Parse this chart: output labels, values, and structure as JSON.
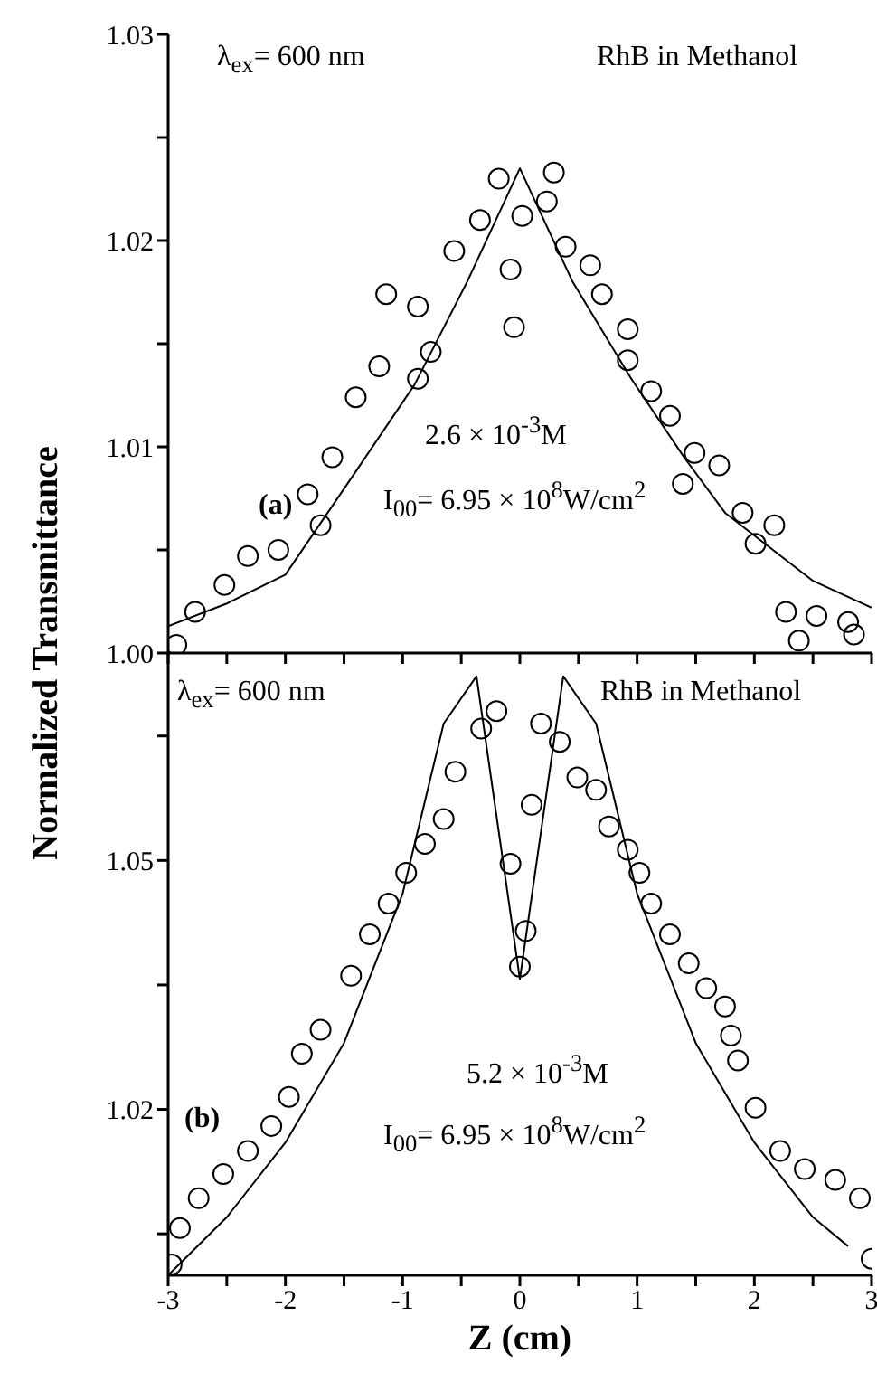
{
  "chart_data": [
    {
      "type": "scatter",
      "marker": "circle",
      "tick_labels": "y",
      "xlim": [
        -3,
        3
      ],
      "xticks": [
        -3,
        {
          "value": -2.5,
          "label": null
        },
        -2,
        {
          "value": -1.5,
          "label": null
        },
        -1,
        {
          "value": -0.5,
          "label": null
        },
        0,
        {
          "value": 0.5,
          "label": null
        },
        1,
        {
          "value": 1.5,
          "label": null
        },
        2,
        {
          "value": 2.5,
          "label": null
        },
        3
      ],
      "ylim": [
        1.0,
        1.03
      ],
      "yticks": [
        {
          "value": 1.0,
          "label": "1.00"
        },
        {
          "value": 1.005,
          "label": null
        },
        1.01,
        {
          "value": 1.015,
          "label": null
        },
        1.02,
        {
          "value": 1.025,
          "label": null
        },
        1.03
      ],
      "annotations": [
        "λ$_{ex}$= 600 nm",
        "RhB in Methanol",
        "2.6 × 10$^{-3}$M",
        "I$_{00}$= 6.95 × 10$^{8}$W/cm$^{2}$",
        "(a)"
      ],
      "series": [
        {
          "color": "#000000",
          "x": [
            -2.93,
            -2.77,
            -2.52,
            -2.32,
            -2.06,
            -1.81,
            -1.7,
            -1.6,
            -1.4,
            -1.2,
            -0.87,
            -0.76,
            -1.14,
            -0.87,
            -0.56,
            -0.34,
            -0.18,
            0.02,
            -0.08,
            -0.05,
            0.29,
            0.23,
            0.39,
            0.6,
            0.7,
            0.92,
            0.92,
            1.12,
            1.28,
            1.49,
            1.39,
            1.7,
            1.9,
            2.17,
            2.01,
            2.27,
            2.53,
            2.8,
            2.38,
            2.85
          ],
          "values": [
            1.0004,
            1.002,
            1.0033,
            1.0047,
            1.005,
            1.0077,
            1.0062,
            1.0095,
            1.0124,
            1.0139,
            1.0133,
            1.0146,
            1.0174,
            1.0168,
            1.0195,
            1.021,
            1.023,
            1.0212,
            1.0186,
            1.0158,
            1.0233,
            1.0219,
            1.0197,
            1.0188,
            1.0174,
            1.0157,
            1.0142,
            1.0127,
            1.0115,
            1.0097,
            1.0082,
            1.0091,
            1.0068,
            1.0062,
            1.0053,
            1.002,
            1.0018,
            1.0015,
            1.0006,
            1.0009
          ]
        },
        {
          "type": "line",
          "marker": "none",
          "line_style": "solid",
          "color": "#000000",
          "x": [
            -3,
            -2.5,
            -2,
            -1.4,
            -0.9,
            -0.45,
            0,
            0.45,
            0.95,
            1.4,
            1.75,
            2.5,
            3
          ],
          "values": [
            1.0013,
            1.0024,
            1.0038,
            1.0088,
            1.013,
            1.018,
            1.0235,
            1.018,
            1.0133,
            1.0095,
            1.0068,
            1.0035,
            1.0022
          ]
        }
      ]
    },
    {
      "type": "scatter",
      "marker": "circle",
      "xlabel": "Z (cm)",
      "ylabel": "Normalized Transmittance",
      "xlim": [
        -3,
        3
      ],
      "xticks": [
        -3,
        {
          "value": -2.5,
          "label": null
        },
        -2,
        {
          "value": -1.5,
          "label": null
        },
        -1,
        {
          "value": -0.5,
          "label": null
        },
        0,
        {
          "value": 0.5,
          "label": null
        },
        1,
        {
          "value": 1.5,
          "label": null
        },
        2,
        {
          "value": 2.5,
          "label": null
        },
        3
      ],
      "ylim": [
        1.0,
        1.075
      ],
      "yticks": [
        {
          "value": 1.005,
          "label": null
        },
        1.02,
        {
          "value": 1.035,
          "label": null
        },
        1.05,
        {
          "value": 1.065,
          "label": null
        }
      ],
      "annotations": [
        "λ$_{ex}$= 600 nm",
        "RhB in Methanol",
        "5.2 × 10$^{-3}$M",
        "I$_{00}$= 6.95 × 10$^{8}$W/cm$^{2}$",
        "(b)"
      ],
      "series": [
        {
          "color": "#000000",
          "x": [
            -2.97,
            -2.9,
            -2.74,
            -2.53,
            -2.32,
            -2.12,
            -1.97,
            -1.86,
            -1.7,
            -1.44,
            -1.28,
            -1.12,
            -0.97,
            -0.81,
            -0.65,
            -0.55,
            -0.33,
            -0.2,
            -0.08,
            0,
            0.05,
            0.1,
            0.18,
            0.34,
            0.49,
            0.65,
            0.76,
            0.92,
            1.02,
            1.12,
            1.28,
            1.44,
            1.59,
            1.75,
            1.8,
            1.86,
            2.01,
            2.22,
            2.43,
            2.69,
            2.9,
            3.0
          ],
          "values": [
            1.0013,
            1.0057,
            1.0093,
            1.0122,
            1.015,
            1.018,
            1.0215,
            1.0267,
            1.0296,
            1.0361,
            1.0411,
            1.0448,
            1.0485,
            1.052,
            1.055,
            1.0607,
            1.0659,
            1.068,
            1.0496,
            1.0372,
            1.0415,
            1.0567,
            1.0665,
            1.0643,
            1.06,
            1.0585,
            1.0541,
            1.0513,
            1.0485,
            1.0448,
            1.0411,
            1.0376,
            1.0346,
            1.0324,
            1.0289,
            1.0259,
            1.0202,
            1.015,
            1.0128,
            1.0115,
            1.0093,
            1.002
          ]
        },
        {
          "type": "line",
          "marker": "none",
          "line_style": "solid",
          "color": "#000000",
          "x": [
            -3,
            -2.5,
            -2,
            -1.5,
            -1,
            -0.65,
            -0.37,
            0,
            0.37,
            0.65,
            1,
            1.5,
            2,
            2.5,
            2.8
          ],
          "values": [
            1.0,
            1.007,
            1.016,
            1.028,
            1.046,
            1.0665,
            1.0722,
            1.0357,
            1.0722,
            1.0665,
            1.046,
            1.028,
            1.016,
            1.007,
            1.0035
          ]
        }
      ]
    }
  ]
}
